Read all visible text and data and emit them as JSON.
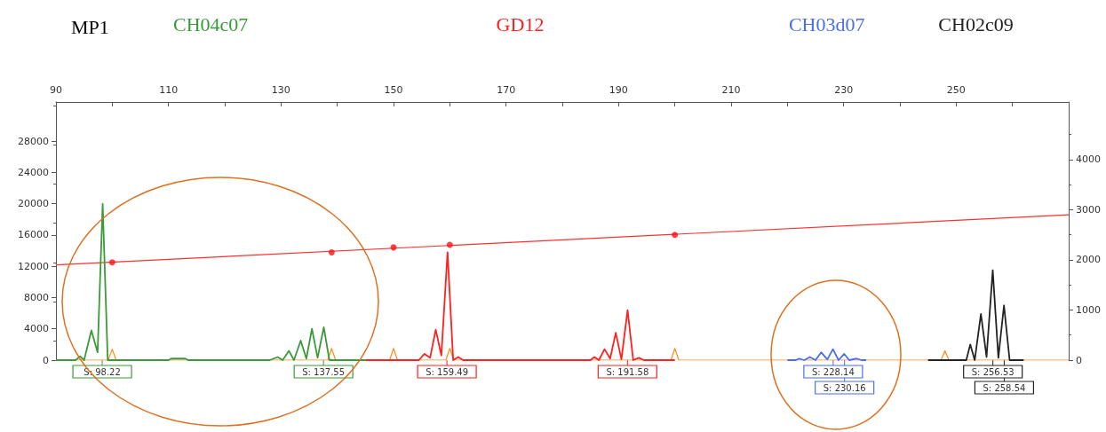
{
  "chart_data": {
    "type": "line",
    "title": "MP1",
    "legend": "top",
    "marker": "none",
    "grid": false,
    "xlim": [
      90,
      270
    ],
    "xticks": [
      90,
      {
        "value": 100,
        "label": null
      },
      110,
      {
        "value": 120,
        "label": null
      },
      130,
      {
        "value": 140,
        "label": null
      },
      150,
      {
        "value": 160,
        "label": null
      },
      170,
      {
        "value": 180,
        "label": null
      },
      190,
      {
        "value": 200,
        "label": null
      },
      210,
      {
        "value": 220,
        "label": null
      },
      230,
      {
        "value": 240,
        "label": null
      },
      250,
      {
        "value": 260,
        "label": null
      }
    ],
    "ylim": [
      0,
      33000
    ],
    "yticks": [
      0,
      4000,
      8000,
      12000,
      16000,
      20000,
      24000,
      28000
    ],
    "y2lim": [
      0,
      5150
    ],
    "y2ticks": [
      0,
      1000,
      2000,
      3000,
      4000
    ],
    "series": [
      {
        "color": "#ff8c1a",
        "x": [
          90,
          99.3,
          100,
          100.7,
          138.3,
          139,
          139.7,
          149.3,
          150,
          150.7,
          159.3,
          160,
          160.7,
          199.3,
          200,
          200.7,
          247.3,
          248,
          248.7,
          270
        ],
        "values": [
          0,
          0,
          1400,
          0,
          0,
          1500,
          0,
          0,
          1500,
          0,
          0,
          1500,
          0,
          0,
          1500,
          0,
          0,
          1200,
          0,
          0
        ]
      },
      {
        "name": "CH04c07",
        "color": "#3a9a3a",
        "x": [
          90,
          93.5,
          94.3,
          95,
          96.3,
          97.4,
          98.3,
          99.2,
          101,
          110,
          110.5,
          113,
          113.5,
          128,
          129.4,
          130.3,
          131.4,
          132.3,
          133.5,
          134.5,
          135.5,
          136.5,
          137.6,
          138.6,
          145
        ],
        "values": [
          0,
          0,
          500,
          0,
          3800,
          1000,
          20000,
          0,
          0,
          0,
          200,
          200,
          0,
          0,
          400,
          0,
          1200,
          0,
          2500,
          200,
          4000,
          300,
          4200,
          0,
          0
        ]
      },
      {
        "name": "GD12",
        "color": "#ff2020",
        "x": [
          145,
          154.5,
          155.5,
          156.5,
          157.5,
          158.5,
          159.6,
          160.6,
          161.5,
          162.4,
          165,
          185,
          185.7,
          186.5,
          187.5,
          188.5,
          189.5,
          190.5,
          191.6,
          192.6,
          193.6,
          194.5,
          200
        ],
        "values": [
          0,
          0,
          800,
          300,
          3900,
          600,
          13800,
          0,
          400,
          0,
          0,
          0,
          400,
          0,
          1400,
          200,
          3500,
          100,
          6400,
          0,
          300,
          0,
          0
        ]
      },
      {
        "name": "CH03d07",
        "color": "#4a6cf0",
        "x": [
          220,
          221.5,
          222.1,
          223,
          224,
          225,
          226,
          227.1,
          228.1,
          229.1,
          230.1,
          231,
          232.3,
          233.2,
          234
        ],
        "values": [
          0,
          0,
          200,
          0,
          400,
          0,
          1000,
          100,
          1400,
          0,
          800,
          0,
          200,
          0,
          0
        ]
      },
      {
        "name": "CH02c09",
        "color": "#222222",
        "x": [
          245,
          251.8,
          252.5,
          253.3,
          254.4,
          255.4,
          256.5,
          257.5,
          258.5,
          259.5,
          262
        ],
        "values": [
          0,
          0,
          2000,
          0,
          5900,
          400,
          11500,
          300,
          7000,
          0,
          0
        ]
      },
      {
        "axis": "y2",
        "color": "#ff3030",
        "x": [
          90,
          270
        ],
        "values": [
          1900,
          2900
        ]
      },
      {
        "type": "scatter",
        "axis": "y2",
        "marker": "circle",
        "color": "#ff1010",
        "x": [
          100,
          139,
          150,
          160,
          200
        ],
        "values": [
          1950,
          2150,
          2250,
          2300,
          2500
        ]
      }
    ],
    "annotations": [
      {
        "text": "S: 98.22",
        "x": 98.22,
        "y": 0
      },
      {
        "text": "S: 137.55",
        "x": 137.55,
        "y": 0
      },
      {
        "text": "S: 159.49",
        "x": 159.49,
        "y": 0
      },
      {
        "text": "S: 191.58",
        "x": 191.58,
        "y": 0
      },
      {
        "text": "S: 228.14",
        "x": 228.14,
        "y": 0
      },
      {
        "text": "S: 230.16",
        "x": 230.16,
        "y": 0
      },
      {
        "text": "S: 256.53",
        "x": 256.53,
        "y": 0
      },
      {
        "text": "S: 258.54",
        "x": 258.54,
        "y": 0
      }
    ]
  }
}
